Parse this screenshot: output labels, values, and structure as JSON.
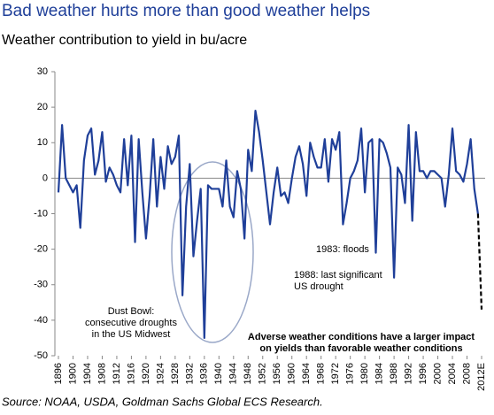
{
  "chart_data": {
    "type": "line",
    "title": "Bad weather hurts more than good weather helps",
    "subtitle": "Weather contribution to yield in bu/acre",
    "source": "Source: NOAA, USDA, Goldman Sachs Global ECS Research.",
    "categories": [
      "1896",
      null,
      null,
      null,
      "1900",
      null,
      null,
      null,
      "1904",
      null,
      null,
      null,
      "1908",
      null,
      null,
      null,
      "1912",
      null,
      null,
      null,
      "1916",
      null,
      null,
      null,
      "1920",
      null,
      null,
      null,
      "1924",
      null,
      null,
      null,
      "1928",
      null,
      null,
      null,
      "1932",
      null,
      null,
      null,
      "1936",
      null,
      null,
      null,
      "1940",
      null,
      null,
      null,
      "1944",
      null,
      null,
      null,
      "1948",
      null,
      null,
      null,
      "1952",
      null,
      null,
      null,
      "1956",
      null,
      null,
      null,
      "1960",
      null,
      null,
      null,
      "1964",
      null,
      null,
      null,
      "1968",
      null,
      null,
      null,
      "1972",
      null,
      null,
      null,
      "1976",
      null,
      null,
      null,
      "1980",
      null,
      null,
      null,
      "1984",
      null,
      null,
      null,
      "1988",
      null,
      null,
      null,
      "1992",
      null,
      null,
      null,
      "1996",
      null,
      null,
      null,
      "2000",
      null,
      null,
      null,
      "2004",
      null,
      null,
      null,
      "2008",
      null,
      null,
      null,
      "2012E"
    ],
    "values": [
      -4,
      15,
      0,
      -2,
      -4,
      -2,
      -14,
      5,
      12,
      14,
      1,
      5,
      13,
      -1,
      3,
      1,
      -2,
      -4,
      11,
      -2,
      12,
      -18,
      11,
      -4,
      -17,
      -5,
      11,
      -8,
      6,
      -3,
      9,
      4,
      6,
      12,
      -33,
      -8,
      4,
      -22,
      -12,
      -3,
      -45,
      -2,
      -3,
      -3,
      -3,
      -8,
      5,
      -8,
      -11,
      2,
      -3,
      -17,
      8,
      2,
      19,
      13,
      5,
      -4,
      -13,
      -4,
      3,
      -5,
      -4,
      -7,
      0,
      6,
      9,
      4,
      -5,
      10,
      6,
      3,
      3,
      11,
      -1,
      11,
      8,
      13,
      -13,
      -7,
      0,
      2,
      5,
      14,
      -4,
      10,
      11,
      -21,
      11,
      10,
      7,
      3,
      -28,
      3,
      1,
      -7,
      15,
      -12,
      13,
      2,
      2,
      0,
      2,
      2,
      1,
      0,
      -8,
      1,
      14,
      2,
      1,
      -1,
      4,
      11,
      -3,
      -10,
      -37
    ],
    "color": "#1f3f99",
    "ylim": [
      -50,
      30
    ],
    "yticks": [
      -50,
      -40,
      -30,
      -20,
      -10,
      0,
      10,
      20,
      30
    ],
    "annotations": [
      [
        "Dust Bowl:",
        "consecutive droughts",
        "in the US Midwest"
      ],
      [
        "1983: floods"
      ],
      [
        "1988: last significant",
        "US drought"
      ],
      [
        "Adverse weather conditions have a larger impact",
        "on yields than favorable weather conditions"
      ]
    ]
  }
}
